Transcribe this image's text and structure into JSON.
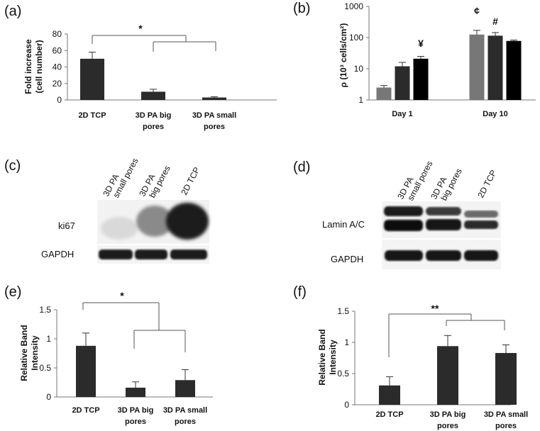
{
  "panels": {
    "a": {
      "label": "(a)"
    },
    "b": {
      "label": "(b)"
    },
    "c": {
      "label": "(c)"
    },
    "d": {
      "label": "(d)"
    },
    "e": {
      "label": "(e)"
    },
    "f": {
      "label": "(f)"
    }
  },
  "blots": {
    "c": {
      "lanes": [
        [
          "3D PA",
          "small pores"
        ],
        [
          "3D PA",
          "big pores"
        ],
        [
          "2D TCP"
        ]
      ],
      "rows": [
        "ki67",
        "GAPDH"
      ]
    },
    "d": {
      "lanes": [
        [
          "3D PA",
          "small pores"
        ],
        [
          "3D PA",
          "big pores"
        ],
        [
          "2D TCP"
        ]
      ],
      "rows": [
        "Lamin A/C",
        "GAPDH"
      ]
    }
  },
  "colors": {
    "bar_dark": "#2b2b2b",
    "bar_gray": "#777777",
    "bar_black": "#000000",
    "axis": "#777777"
  },
  "chart_data": [
    {
      "id": "a",
      "type": "bar",
      "categories": [
        [
          "2D TCP"
        ],
        [
          "3D PA big",
          "pores"
        ],
        [
          "3D PA small",
          "pores"
        ]
      ],
      "values": [
        50,
        10,
        3
      ],
      "errors": [
        8,
        3,
        1
      ],
      "ylabel": [
        "Fold increase",
        "(cell number)"
      ],
      "ylim": [
        0,
        80
      ],
      "yticks": [
        0,
        20,
        40,
        60,
        80
      ],
      "annotations": [
        "*"
      ],
      "grid": false,
      "legend": "none"
    },
    {
      "id": "b",
      "type": "bar",
      "log_scale": true,
      "groups": [
        "Day 1",
        "Day 10"
      ],
      "bars_per_group": 3,
      "values": [
        [
          2.5,
          12,
          21
        ],
        [
          125,
          115,
          78
        ]
      ],
      "errors": [
        [
          0.4,
          4,
          4
        ],
        [
          45,
          30,
          5
        ]
      ],
      "ylabel": "ρ (10³ cells/cm²)",
      "ylim": [
        1,
        1000
      ],
      "yticks": [
        "1",
        "10",
        "100",
        "1000"
      ],
      "annotations": [
        "¥",
        "¢",
        "#"
      ],
      "grid": false,
      "legend": "none"
    },
    {
      "id": "e",
      "type": "bar",
      "categories": [
        [
          "2D TCP"
        ],
        [
          "3D PA big",
          "pores"
        ],
        [
          "3D PA small",
          "pores"
        ]
      ],
      "values": [
        0.88,
        0.16,
        0.29
      ],
      "errors": [
        0.22,
        0.1,
        0.18
      ],
      "ylabel": [
        "Relative Band",
        "Intensity"
      ],
      "ylim": [
        0,
        1.5
      ],
      "yticks": [
        "0",
        "0.5",
        "1",
        "1.5"
      ],
      "annotations": [
        "*"
      ],
      "grid": false,
      "legend": "none"
    },
    {
      "id": "f",
      "type": "bar",
      "categories": [
        [
          "2D TCP"
        ],
        [
          "3D PA big",
          "pores"
        ],
        [
          "3D PA small",
          "pores"
        ]
      ],
      "values": [
        0.31,
        0.94,
        0.83
      ],
      "errors": [
        0.14,
        0.17,
        0.13
      ],
      "ylabel": [
        "Relative Band",
        "Intensity"
      ],
      "ylim": [
        0,
        1.5
      ],
      "yticks": [
        "0",
        "0.5",
        "1",
        "1.5"
      ],
      "annotations": [
        "**"
      ],
      "grid": false,
      "legend": "none"
    }
  ]
}
